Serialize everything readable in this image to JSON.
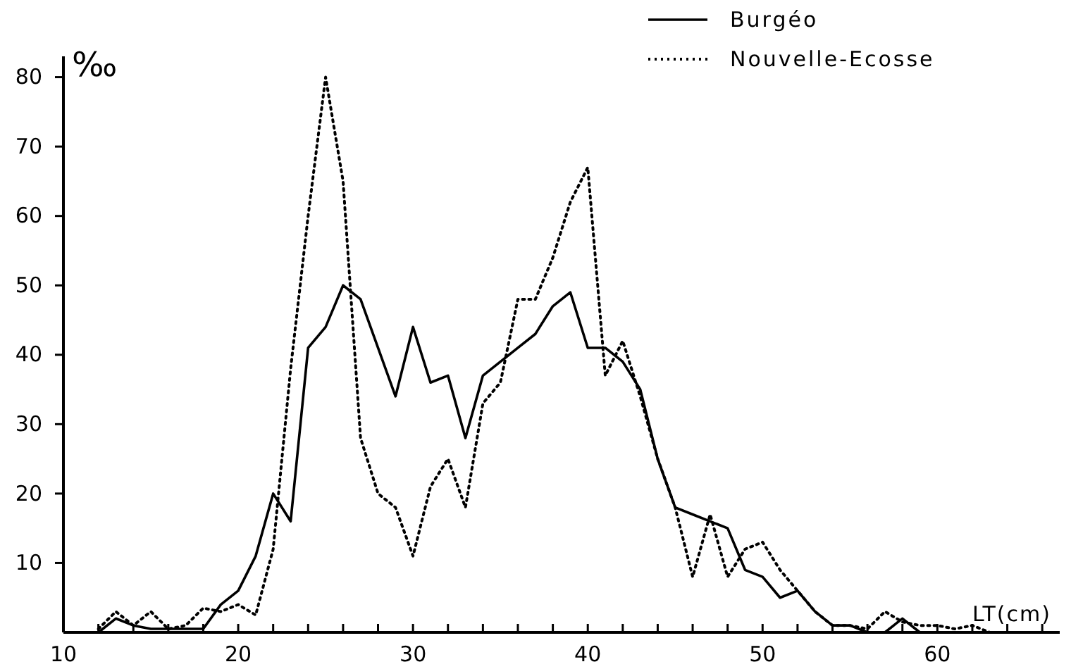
{
  "chart_data": {
    "type": "line",
    "xlabel": "LT(cm)",
    "ylabel": "‰",
    "legend": "top right",
    "grid": false,
    "marker": "none",
    "xlim": [
      10,
      67
    ],
    "ylim": [
      0,
      83
    ],
    "xticks": [
      10,
      {
        "value": 12,
        "label": null
      },
      {
        "value": 14,
        "label": null
      },
      {
        "value": 16,
        "label": null
      },
      {
        "value": 18,
        "label": null
      },
      20,
      {
        "value": 22,
        "label": null
      },
      {
        "value": 24,
        "label": null
      },
      {
        "value": 26,
        "label": null
      },
      {
        "value": 28,
        "label": null
      },
      30,
      {
        "value": 32,
        "label": null
      },
      {
        "value": 34,
        "label": null
      },
      {
        "value": 36,
        "label": null
      },
      {
        "value": 38,
        "label": null
      },
      40,
      {
        "value": 42,
        "label": null
      },
      {
        "value": 44,
        "label": null
      },
      {
        "value": 46,
        "label": null
      },
      {
        "value": 48,
        "label": null
      },
      50,
      {
        "value": 52,
        "label": null
      },
      {
        "value": 54,
        "label": null
      },
      {
        "value": 56,
        "label": null
      },
      {
        "value": 58,
        "label": null
      },
      60,
      {
        "value": 62,
        "label": null
      },
      {
        "value": 64,
        "label": null
      },
      {
        "value": 66,
        "label": null
      }
    ],
    "yticks": [
      10,
      20,
      30,
      40,
      50,
      60,
      70,
      80
    ],
    "series": [
      {
        "name": "Burgéo",
        "color": "#000000",
        "line_style": "solid",
        "x": [
          12,
          13,
          14,
          15,
          16,
          17,
          18,
          19,
          20,
          21,
          22,
          23,
          24,
          25,
          26,
          27,
          28,
          29,
          30,
          31,
          32,
          33,
          34,
          35,
          36,
          37,
          38,
          39,
          40,
          41,
          42,
          43,
          44,
          45,
          46,
          47,
          48,
          49,
          50,
          51,
          52,
          53,
          54,
          55,
          56,
          57,
          58,
          59
        ],
        "values": [
          0,
          2,
          1,
          0.5,
          0.5,
          0.5,
          0.5,
          4,
          6,
          11,
          20,
          16,
          41,
          44,
          50,
          48,
          41,
          34,
          44,
          36,
          37,
          28,
          37,
          39,
          41,
          43,
          47,
          49,
          41,
          41,
          39,
          35,
          25,
          18,
          17,
          16,
          15,
          9,
          8,
          5,
          6,
          3,
          1,
          1,
          0,
          0,
          2,
          0
        ]
      },
      {
        "name": "Nouvelle-Ecosse",
        "color": "#000000",
        "line_style": "dotted",
        "x": [
          12,
          13,
          14,
          15,
          16,
          17,
          18,
          19,
          20,
          21,
          22,
          23,
          24,
          25,
          26,
          27,
          28,
          29,
          30,
          31,
          32,
          33,
          34,
          35,
          36,
          37,
          38,
          39,
          40,
          41,
          42,
          43,
          44,
          45,
          46,
          47,
          48,
          49,
          50,
          51,
          52,
          53,
          54,
          55,
          56,
          57,
          58,
          59,
          60,
          61,
          62,
          63
        ],
        "values": [
          0.5,
          3,
          1,
          3,
          0.5,
          1,
          3.5,
          3,
          4,
          2.5,
          12,
          38,
          60,
          80,
          65,
          28,
          20,
          18,
          11,
          21,
          25,
          18,
          33,
          36,
          48,
          48,
          54,
          62,
          67,
          37,
          42,
          34,
          25,
          18,
          8,
          17,
          8,
          12,
          13,
          9,
          6,
          3,
          1,
          1,
          0.5,
          3,
          1.5,
          1,
          1,
          0.5,
          1,
          0
        ]
      }
    ]
  }
}
